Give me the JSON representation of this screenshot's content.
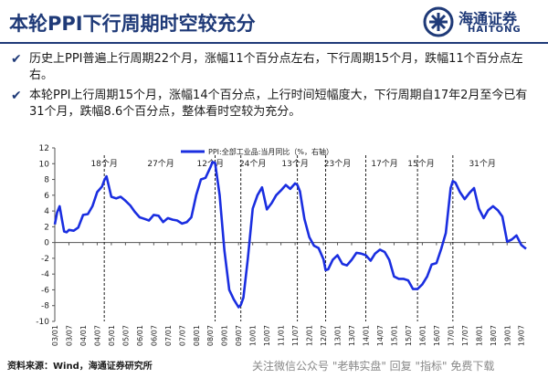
{
  "header": {
    "title": "本轮PPI下行周期时空较充分",
    "logo_cn": "海通证券",
    "logo_en": "HAITONG"
  },
  "bullets": [
    "历史上PPI普遍上行周期22个月，涨幅11个百分点左右，下行周期15个月，跌幅11个百分点左右。",
    "本轮PPI上行周期15个月，涨幅14个百分点，上行时间短幅度大，下行周期自17年2月至今已有31个月，跌幅8.6个百分点，整体看时空较为充分。"
  ],
  "footer": {
    "source": "资料来源：Wind，海通证券研究所",
    "watermark": "关注微信公众号 \"老韩实盘\" 回复 \"指标\" 免费下载"
  },
  "colors": {
    "brand": "#1f3a78",
    "series": "#1a2ee0"
  },
  "chart_data": {
    "type": "line",
    "legend_position": "top",
    "grid": false,
    "xlim": [
      2003.0,
      2019.67
    ],
    "ylim": [
      -10,
      12
    ],
    "yticks": [
      -10,
      -8,
      -6,
      -4,
      -2,
      0,
      2,
      4,
      6,
      8,
      10,
      12
    ],
    "xticks": [
      {
        "t": 2003.0,
        "label": "03/01"
      },
      {
        "t": 2003.5,
        "label": "03/07"
      },
      {
        "t": 2004.0,
        "label": "04/01"
      },
      {
        "t": 2004.5,
        "label": "04/07"
      },
      {
        "t": 2005.0,
        "label": "05/01"
      },
      {
        "t": 2005.5,
        "label": "05/07"
      },
      {
        "t": 2006.0,
        "label": "06/01"
      },
      {
        "t": 2006.5,
        "label": "06/07"
      },
      {
        "t": 2007.0,
        "label": "07/01"
      },
      {
        "t": 2007.5,
        "label": "07/07"
      },
      {
        "t": 2008.0,
        "label": "08/01"
      },
      {
        "t": 2008.5,
        "label": "08/07"
      },
      {
        "t": 2009.0,
        "label": "09/01"
      },
      {
        "t": 2009.5,
        "label": "09/07"
      },
      {
        "t": 2010.0,
        "label": "10/01"
      },
      {
        "t": 2010.5,
        "label": "10/07"
      },
      {
        "t": 2011.0,
        "label": "11/01"
      },
      {
        "t": 2011.5,
        "label": "11/07"
      },
      {
        "t": 2012.0,
        "label": "12/01"
      },
      {
        "t": 2012.5,
        "label": "12/07"
      },
      {
        "t": 2013.0,
        "label": "13/01"
      },
      {
        "t": 2013.5,
        "label": "13/07"
      },
      {
        "t": 2014.0,
        "label": "14/01"
      },
      {
        "t": 2014.5,
        "label": "14/07"
      },
      {
        "t": 2015.0,
        "label": "15/01"
      },
      {
        "t": 2015.5,
        "label": "15/07"
      },
      {
        "t": 2016.0,
        "label": "16/01"
      },
      {
        "t": 2016.5,
        "label": "16/07"
      },
      {
        "t": 2017.0,
        "label": "17/01"
      },
      {
        "t": 2017.5,
        "label": "17/07"
      },
      {
        "t": 2018.0,
        "label": "18/01"
      },
      {
        "t": 2018.5,
        "label": "18/07"
      },
      {
        "t": 2019.0,
        "label": "19/01"
      },
      {
        "t": 2019.5,
        "label": "19/07"
      }
    ],
    "series": [
      {
        "name": "PPI:全部工业品:当月同比（%，右轴）",
        "x": [
          2003.0,
          2003.08,
          2003.17,
          2003.25,
          2003.33,
          2003.42,
          2003.5,
          2003.67,
          2003.83,
          2004.0,
          2004.17,
          2004.33,
          2004.5,
          2004.67,
          2004.75,
          2004.83,
          2005.0,
          2005.17,
          2005.33,
          2005.5,
          2005.67,
          2005.83,
          2006.0,
          2006.17,
          2006.33,
          2006.5,
          2006.67,
          2006.83,
          2007.0,
          2007.17,
          2007.33,
          2007.5,
          2007.67,
          2007.83,
          2008.0,
          2008.17,
          2008.33,
          2008.5,
          2008.58,
          2008.67,
          2008.83,
          2009.0,
          2009.17,
          2009.33,
          2009.5,
          2009.58,
          2009.67,
          2009.83,
          2010.0,
          2010.17,
          2010.33,
          2010.5,
          2010.67,
          2010.83,
          2011.0,
          2011.17,
          2011.33,
          2011.5,
          2011.58,
          2011.67,
          2011.83,
          2012.0,
          2012.17,
          2012.33,
          2012.5,
          2012.58,
          2012.67,
          2012.83,
          2013.0,
          2013.17,
          2013.33,
          2013.5,
          2013.67,
          2013.83,
          2014.0,
          2014.17,
          2014.33,
          2014.5,
          2014.67,
          2014.83,
          2015.0,
          2015.17,
          2015.33,
          2015.5,
          2015.67,
          2015.83,
          2016.0,
          2016.17,
          2016.33,
          2016.5,
          2016.67,
          2016.83,
          2017.0,
          2017.08,
          2017.17,
          2017.33,
          2017.5,
          2017.67,
          2017.83,
          2018.0,
          2018.17,
          2018.33,
          2018.5,
          2018.67,
          2018.83,
          2019.0,
          2019.17,
          2019.33,
          2019.5,
          2019.67
        ],
        "values": [
          2.3,
          3.8,
          4.6,
          3.0,
          1.4,
          1.3,
          1.6,
          1.5,
          1.9,
          3.5,
          3.6,
          4.6,
          6.4,
          7.1,
          7.9,
          8.4,
          5.8,
          5.6,
          5.8,
          5.3,
          4.7,
          3.9,
          3.2,
          3.0,
          2.8,
          3.5,
          3.4,
          2.6,
          3.1,
          2.9,
          2.8,
          2.4,
          2.6,
          3.2,
          6.0,
          8.0,
          8.2,
          9.5,
          10.2,
          10.1,
          6.0,
          -1.0,
          -6.0,
          -7.2,
          -8.2,
          -7.9,
          -7.0,
          -2.0,
          4.3,
          6.0,
          7.0,
          4.2,
          5.0,
          6.0,
          6.6,
          7.3,
          6.8,
          7.5,
          7.3,
          6.5,
          3.0,
          0.7,
          -0.4,
          -0.7,
          -2.1,
          -3.5,
          -3.4,
          -2.2,
          -1.6,
          -2.7,
          -2.9,
          -2.2,
          -1.3,
          -1.4,
          -1.6,
          -2.3,
          -1.4,
          -0.9,
          -1.2,
          -2.2,
          -4.3,
          -4.6,
          -4.6,
          -4.8,
          -5.9,
          -5.9,
          -5.3,
          -4.3,
          -2.8,
          -2.6,
          -0.8,
          1.2,
          6.9,
          7.8,
          7.6,
          6.4,
          5.5,
          6.3,
          6.9,
          4.3,
          3.1,
          4.1,
          4.6,
          4.1,
          3.3,
          0.1,
          0.4,
          0.9,
          -0.3,
          -0.8
        ]
      }
    ],
    "cycles": [
      {
        "start": 2004.0,
        "end": 2005.5,
        "label": "18个月"
      },
      {
        "start": 2005.5,
        "end": 2008.0,
        "label": "27个月"
      },
      {
        "start": 2008.0,
        "end": 2009.0,
        "label": "12个月"
      },
      {
        "start": 2009.0,
        "end": 2011.0,
        "label": "24个月"
      },
      {
        "start": 2011.0,
        "end": 2012.0,
        "label": "13个月"
      },
      {
        "start": 2012.0,
        "end": 2014.0,
        "label": "23个月"
      },
      {
        "start": 2014.0,
        "end": 2015.33,
        "label": "17个月"
      },
      {
        "start": 2015.33,
        "end": 2016.58,
        "label": "15个月"
      },
      {
        "start": 2016.58,
        "end": 2019.67,
        "label": "31个月"
      }
    ],
    "dividers": [
      2004.75,
      2008.67,
      2009.58,
      2011.58,
      2012.58,
      2014.0,
      2015.83,
      2017.08
    ]
  }
}
